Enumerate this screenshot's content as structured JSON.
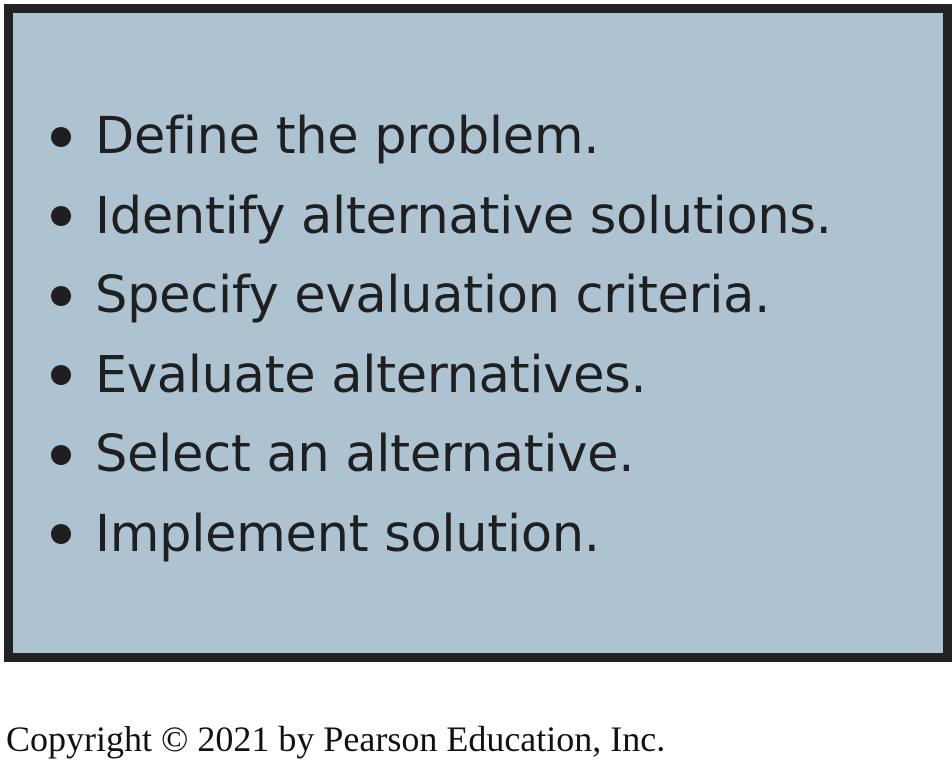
{
  "steps": [
    "Define the problem.",
    "Identify alternative solutions.",
    "Specify evaluation criteria.",
    "Evaluate alternatives.",
    "Select an alternative.",
    "Implement solution."
  ],
  "footer": {
    "copyright": "Copyright © 2021 by Pearson Education, Inc."
  },
  "colors": {
    "panel_fill": "#aec3d1",
    "panel_border": "#222222",
    "text": "#1f1f1f"
  }
}
